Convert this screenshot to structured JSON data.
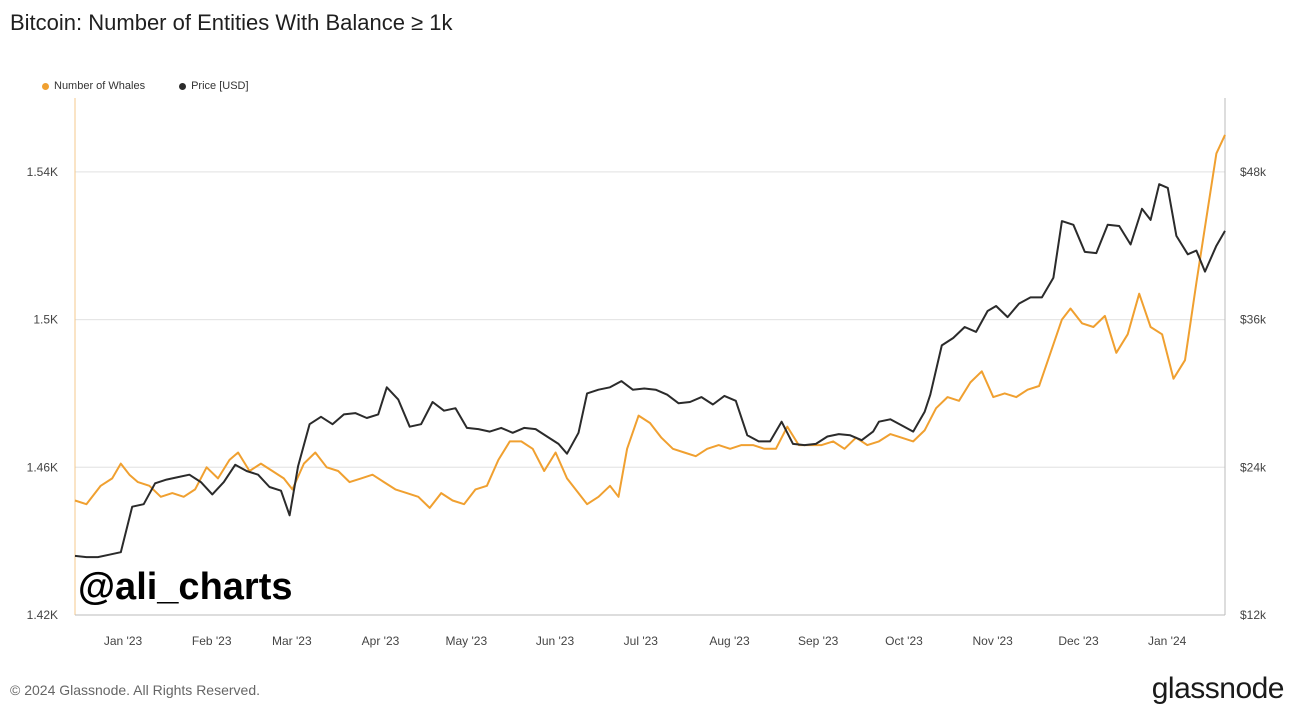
{
  "title": "Bitcoin: Number of Entities With Balance ≥ 1k",
  "legend": {
    "whales": "Number of Whales",
    "price": "Price [USD]"
  },
  "watermark": "@ali_charts",
  "footer": "© 2024 Glassnode. All Rights Reserved.",
  "brand": "glassnode",
  "colors": {
    "whales": "#f0a030",
    "price": "#2b2b2b",
    "grid": "#e6e6e6",
    "axis": "#bbbbbb"
  },
  "chart_data": {
    "type": "line",
    "x_ticks": [
      "Jan '23",
      "Feb '23",
      "Mar '23",
      "Apr '23",
      "May '23",
      "Jun '23",
      "Jul '23",
      "Aug '23",
      "Sep '23",
      "Oct '23",
      "Nov '23",
      "Dec '23",
      "Jan '24"
    ],
    "y_left": {
      "ticks": [
        "1.42K",
        "1.46K",
        "1.5K",
        "1.54K"
      ],
      "range": [
        1420,
        1560
      ]
    },
    "y_right": {
      "ticks": [
        "$12k",
        "$24k",
        "$36k",
        "$48k"
      ],
      "range": [
        12000,
        54000
      ]
    },
    "x_range": [
      "2022-12-25",
      "2024-01-31"
    ],
    "grid": true,
    "legend_position": "top-left",
    "series": [
      {
        "name": "Number of Whales",
        "axis": "left",
        "points": [
          [
            "2022-12-25",
            1451
          ],
          [
            "2022-12-29",
            1450
          ],
          [
            "2023-01-03",
            1455
          ],
          [
            "2023-01-07",
            1457
          ],
          [
            "2023-01-10",
            1461
          ],
          [
            "2023-01-13",
            1458
          ],
          [
            "2023-01-16",
            1456
          ],
          [
            "2023-01-20",
            1455
          ],
          [
            "2023-01-24",
            1452
          ],
          [
            "2023-01-28",
            1453
          ],
          [
            "2023-02-01",
            1452
          ],
          [
            "2023-02-05",
            1454
          ],
          [
            "2023-02-09",
            1460
          ],
          [
            "2023-02-13",
            1457
          ],
          [
            "2023-02-17",
            1462
          ],
          [
            "2023-02-20",
            1464
          ],
          [
            "2023-02-24",
            1459
          ],
          [
            "2023-02-28",
            1461
          ],
          [
            "2023-03-04",
            1459
          ],
          [
            "2023-03-08",
            1457
          ],
          [
            "2023-03-11",
            1454
          ],
          [
            "2023-03-15",
            1461
          ],
          [
            "2023-03-19",
            1464
          ],
          [
            "2023-03-23",
            1460
          ],
          [
            "2023-03-27",
            1459
          ],
          [
            "2023-03-31",
            1456
          ],
          [
            "2023-04-04",
            1457
          ],
          [
            "2023-04-08",
            1458
          ],
          [
            "2023-04-12",
            1456
          ],
          [
            "2023-04-16",
            1454
          ],
          [
            "2023-04-20",
            1453
          ],
          [
            "2023-04-24",
            1452
          ],
          [
            "2023-04-28",
            1449
          ],
          [
            "2023-05-02",
            1453
          ],
          [
            "2023-05-06",
            1451
          ],
          [
            "2023-05-10",
            1450
          ],
          [
            "2023-05-14",
            1454
          ],
          [
            "2023-05-18",
            1455
          ],
          [
            "2023-05-22",
            1462
          ],
          [
            "2023-05-26",
            1467
          ],
          [
            "2023-05-30",
            1467
          ],
          [
            "2023-06-03",
            1465
          ],
          [
            "2023-06-07",
            1459
          ],
          [
            "2023-06-11",
            1464
          ],
          [
            "2023-06-15",
            1457
          ],
          [
            "2023-06-19",
            1453
          ],
          [
            "2023-06-22",
            1450
          ],
          [
            "2023-06-26",
            1452
          ],
          [
            "2023-06-30",
            1455
          ],
          [
            "2023-07-03",
            1452
          ],
          [
            "2023-07-06",
            1465
          ],
          [
            "2023-07-10",
            1474
          ],
          [
            "2023-07-14",
            1472
          ],
          [
            "2023-07-18",
            1468
          ],
          [
            "2023-07-22",
            1465
          ],
          [
            "2023-07-26",
            1464
          ],
          [
            "2023-07-30",
            1463
          ],
          [
            "2023-08-03",
            1465
          ],
          [
            "2023-08-07",
            1466
          ],
          [
            "2023-08-11",
            1465
          ],
          [
            "2023-08-15",
            1466
          ],
          [
            "2023-08-19",
            1466
          ],
          [
            "2023-08-23",
            1465
          ],
          [
            "2023-08-27",
            1465
          ],
          [
            "2023-08-31",
            1471
          ],
          [
            "2023-09-04",
            1466
          ],
          [
            "2023-09-08",
            1466
          ],
          [
            "2023-09-12",
            1466
          ],
          [
            "2023-09-16",
            1467
          ],
          [
            "2023-09-20",
            1465
          ],
          [
            "2023-09-24",
            1468
          ],
          [
            "2023-09-28",
            1466
          ],
          [
            "2023-10-02",
            1467
          ],
          [
            "2023-10-06",
            1469
          ],
          [
            "2023-10-10",
            1468
          ],
          [
            "2023-10-14",
            1467
          ],
          [
            "2023-10-18",
            1470
          ],
          [
            "2023-10-22",
            1476
          ],
          [
            "2023-10-26",
            1479
          ],
          [
            "2023-10-30",
            1478
          ],
          [
            "2023-11-03",
            1483
          ],
          [
            "2023-11-07",
            1486
          ],
          [
            "2023-11-11",
            1479
          ],
          [
            "2023-11-15",
            1480
          ],
          [
            "2023-11-19",
            1479
          ],
          [
            "2023-11-23",
            1481
          ],
          [
            "2023-11-27",
            1482
          ],
          [
            "2023-12-01",
            1491
          ],
          [
            "2023-12-05",
            1500
          ],
          [
            "2023-12-08",
            1503
          ],
          [
            "2023-12-12",
            1499
          ],
          [
            "2023-12-16",
            1498
          ],
          [
            "2023-12-20",
            1501
          ],
          [
            "2023-12-24",
            1491
          ],
          [
            "2023-12-28",
            1496
          ],
          [
            "2024-01-01",
            1507
          ],
          [
            "2024-01-05",
            1498
          ],
          [
            "2024-01-09",
            1496
          ],
          [
            "2024-01-13",
            1484
          ],
          [
            "2024-01-17",
            1489
          ],
          [
            "2024-01-21",
            1510
          ],
          [
            "2024-01-25",
            1530
          ],
          [
            "2024-01-28",
            1545
          ],
          [
            "2024-01-31",
            1550
          ]
        ]
      },
      {
        "name": "Price [USD]",
        "axis": "right",
        "points": [
          [
            "2022-12-25",
            16800
          ],
          [
            "2022-12-29",
            16700
          ],
          [
            "2023-01-02",
            16700
          ],
          [
            "2023-01-06",
            16900
          ],
          [
            "2023-01-10",
            17100
          ],
          [
            "2023-01-14",
            20800
          ],
          [
            "2023-01-18",
            21000
          ],
          [
            "2023-01-22",
            22700
          ],
          [
            "2023-01-26",
            23000
          ],
          [
            "2023-01-30",
            23200
          ],
          [
            "2023-02-03",
            23400
          ],
          [
            "2023-02-07",
            22800
          ],
          [
            "2023-02-11",
            21800
          ],
          [
            "2023-02-15",
            22800
          ],
          [
            "2023-02-19",
            24200
          ],
          [
            "2023-02-23",
            23700
          ],
          [
            "2023-02-27",
            23400
          ],
          [
            "2023-03-03",
            22400
          ],
          [
            "2023-03-07",
            22100
          ],
          [
            "2023-03-10",
            20100
          ],
          [
            "2023-03-13",
            24100
          ],
          [
            "2023-03-17",
            27500
          ],
          [
            "2023-03-21",
            28100
          ],
          [
            "2023-03-25",
            27500
          ],
          [
            "2023-03-29",
            28300
          ],
          [
            "2023-04-02",
            28400
          ],
          [
            "2023-04-06",
            28000
          ],
          [
            "2023-04-10",
            28300
          ],
          [
            "2023-04-13",
            30500
          ],
          [
            "2023-04-17",
            29500
          ],
          [
            "2023-04-21",
            27300
          ],
          [
            "2023-04-25",
            27500
          ],
          [
            "2023-04-29",
            29300
          ],
          [
            "2023-05-03",
            28600
          ],
          [
            "2023-05-07",
            28800
          ],
          [
            "2023-05-11",
            27200
          ],
          [
            "2023-05-15",
            27100
          ],
          [
            "2023-05-19",
            26900
          ],
          [
            "2023-05-23",
            27200
          ],
          [
            "2023-05-27",
            26800
          ],
          [
            "2023-05-31",
            27200
          ],
          [
            "2023-06-04",
            27100
          ],
          [
            "2023-06-08",
            26500
          ],
          [
            "2023-06-12",
            25900
          ],
          [
            "2023-06-15",
            25100
          ],
          [
            "2023-06-19",
            26800
          ],
          [
            "2023-06-22",
            30000
          ],
          [
            "2023-06-26",
            30300
          ],
          [
            "2023-06-30",
            30500
          ],
          [
            "2023-07-04",
            31000
          ],
          [
            "2023-07-08",
            30300
          ],
          [
            "2023-07-12",
            30400
          ],
          [
            "2023-07-16",
            30300
          ],
          [
            "2023-07-20",
            29900
          ],
          [
            "2023-07-24",
            29200
          ],
          [
            "2023-07-28",
            29300
          ],
          [
            "2023-08-01",
            29700
          ],
          [
            "2023-08-05",
            29100
          ],
          [
            "2023-08-09",
            29800
          ],
          [
            "2023-08-13",
            29400
          ],
          [
            "2023-08-17",
            26600
          ],
          [
            "2023-08-21",
            26100
          ],
          [
            "2023-08-25",
            26100
          ],
          [
            "2023-08-29",
            27700
          ],
          [
            "2023-09-02",
            25900
          ],
          [
            "2023-09-06",
            25800
          ],
          [
            "2023-09-10",
            25900
          ],
          [
            "2023-09-14",
            26500
          ],
          [
            "2023-09-18",
            26700
          ],
          [
            "2023-09-22",
            26600
          ],
          [
            "2023-09-26",
            26200
          ],
          [
            "2023-09-30",
            26900
          ],
          [
            "2023-10-02",
            27700
          ],
          [
            "2023-10-06",
            27900
          ],
          [
            "2023-10-10",
            27400
          ],
          [
            "2023-10-14",
            26900
          ],
          [
            "2023-10-18",
            28500
          ],
          [
            "2023-10-20",
            29900
          ],
          [
            "2023-10-24",
            33900
          ],
          [
            "2023-10-28",
            34500
          ],
          [
            "2023-11-01",
            35400
          ],
          [
            "2023-11-05",
            35000
          ],
          [
            "2023-11-09",
            36700
          ],
          [
            "2023-11-12",
            37100
          ],
          [
            "2023-11-16",
            36200
          ],
          [
            "2023-11-20",
            37300
          ],
          [
            "2023-11-24",
            37800
          ],
          [
            "2023-11-28",
            37800
          ],
          [
            "2023-12-02",
            39400
          ],
          [
            "2023-12-05",
            44000
          ],
          [
            "2023-12-09",
            43700
          ],
          [
            "2023-12-13",
            41500
          ],
          [
            "2023-12-17",
            41400
          ],
          [
            "2023-12-21",
            43700
          ],
          [
            "2023-12-25",
            43600
          ],
          [
            "2023-12-29",
            42100
          ],
          [
            "2024-01-02",
            45000
          ],
          [
            "2024-01-05",
            44100
          ],
          [
            "2024-01-08",
            47000
          ],
          [
            "2024-01-11",
            46700
          ],
          [
            "2024-01-14",
            42800
          ],
          [
            "2024-01-18",
            41300
          ],
          [
            "2024-01-21",
            41600
          ],
          [
            "2024-01-24",
            39900
          ],
          [
            "2024-01-28",
            42000
          ],
          [
            "2024-01-31",
            43200
          ]
        ]
      }
    ]
  }
}
